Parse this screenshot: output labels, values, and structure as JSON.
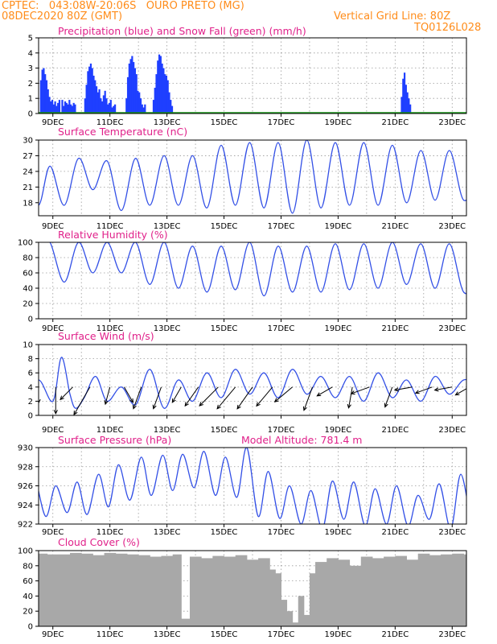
{
  "header": {
    "line1": "CPTEC:   043:08W-20:06S   OURO PRETO (MG)",
    "line2_left": "08DEC2020 80Z (GMT)",
    "line2_right": "Vertical Grid Line: 80Z",
    "line3_right": "TQ0126L028"
  },
  "colors": {
    "header": "#ff8c1a",
    "titles": "#e0218a",
    "precip": "#1f3fff",
    "snow": "#1a9a1a",
    "lines": "#3350e6",
    "cloud": "#a8a8a8",
    "wind_arrows": "#000000"
  },
  "x_tick_labels": [
    "9DEC",
    "11DEC",
    "13DEC",
    "15DEC",
    "17DEC",
    "19DEC",
    "21DEC",
    "23DEC"
  ],
  "chart_data": [
    {
      "id": "precip",
      "type": "bar",
      "title": "Precipitation (blue) and Snow Fall (green) (mm/h)",
      "x_days": [
        0.05,
        0.1,
        0.15,
        0.2,
        0.25,
        0.3,
        0.35,
        0.55,
        0.6,
        0.65,
        0.7,
        0.75,
        0.8,
        0.85,
        0.9,
        0.95,
        1.0,
        1.05,
        1.1,
        1.15,
        1.2,
        1.3,
        1.35,
        1.4,
        1.45,
        1.5,
        1.55,
        1.6,
        1.65,
        1.7,
        1.75,
        2.1,
        2.15,
        2.2,
        2.25,
        2.3,
        2.35,
        2.4,
        2.45,
        2.5,
        2.55,
        2.6,
        2.65,
        2.7,
        2.75,
        2.8,
        2.85,
        2.9,
        2.95,
        3.0,
        3.05,
        3.1,
        3.15,
        3.55,
        3.6,
        3.65,
        3.7,
        3.75,
        3.8,
        3.85,
        3.9,
        3.95,
        4.0,
        4.05,
        4.1,
        4.15,
        4.2,
        4.5,
        4.55,
        4.6,
        4.65,
        4.7,
        4.75,
        4.8,
        4.85,
        4.9,
        4.95,
        5.0,
        5.05,
        5.1,
        5.15,
        13.2,
        13.25,
        13.3,
        13.35,
        13.4,
        13.45,
        13.5
      ],
      "values": [
        1.0,
        0.4,
        1.2,
        0.8,
        0.5,
        1.1,
        0.6,
        2.2,
        2.9,
        3.0,
        2.6,
        2.2,
        1.6,
        1.1,
        0.8,
        0.9,
        0.6,
        0.8,
        0.5,
        0.7,
        0.9,
        0.9,
        0.5,
        0.8,
        0.7,
        0.6,
        0.9,
        0.6,
        0.5,
        0.7,
        0.6,
        1.0,
        1.9,
        2.8,
        3.1,
        3.3,
        3.0,
        2.5,
        2.2,
        1.8,
        1.4,
        1.6,
        1.0,
        0.8,
        1.2,
        1.5,
        1.0,
        0.6,
        0.7,
        0.9,
        0.4,
        0.5,
        0.6,
        1.0,
        2.4,
        3.3,
        3.6,
        3.8,
        3.4,
        3.0,
        2.6,
        1.5,
        1.4,
        1.0,
        0.6,
        0.4,
        0.6,
        0.9,
        1.7,
        2.6,
        3.5,
        3.9,
        3.8,
        3.3,
        3.0,
        2.6,
        2.5,
        2.2,
        1.4,
        0.9,
        0.5,
        1.1,
        2.3,
        2.7,
        1.9,
        1.4,
        1.0,
        0.6
      ],
      "snow": "0 throughout",
      "ylim": [
        0,
        5
      ],
      "yticks": [
        0,
        1,
        2,
        3,
        4,
        5
      ]
    },
    {
      "id": "temperature",
      "type": "line",
      "title": "Surface Temperature (nC)",
      "x_days": [
        0,
        0.5,
        0.9,
        1.4,
        1.9,
        2.4,
        2.9,
        3.4,
        3.9,
        4.4,
        4.9,
        5.4,
        5.9,
        6.4,
        6.9,
        7.4,
        7.9,
        8.4,
        8.9,
        9.4,
        9.9,
        10.4,
        10.9,
        11.4,
        11.9,
        12.4,
        12.9,
        13.4,
        13.9,
        14.4,
        14.9,
        15.4,
        15.9
      ],
      "values": [
        22,
        17.5,
        25,
        17.5,
        26.5,
        20.5,
        26,
        16.5,
        26.5,
        17.5,
        27,
        17.5,
        27,
        17,
        29,
        17.5,
        29.5,
        17,
        29.5,
        16,
        30,
        17,
        29.5,
        17.5,
        29.5,
        17.5,
        29,
        18,
        28,
        18.5,
        28,
        18.5,
        23
      ],
      "ylim": [
        15.5,
        30
      ],
      "yticks": [
        18,
        21,
        24,
        27,
        30
      ]
    },
    {
      "id": "humidity",
      "type": "line",
      "title": "Relative Humidity (%)",
      "x_days": [
        0,
        0.5,
        0.9,
        1.4,
        1.9,
        2.4,
        2.9,
        3.4,
        3.9,
        4.4,
        4.9,
        5.4,
        5.9,
        6.4,
        6.9,
        7.4,
        7.9,
        8.4,
        8.9,
        9.4,
        9.9,
        10.4,
        10.9,
        11.4,
        11.9,
        12.4,
        12.9,
        13.4,
        13.9,
        14.4,
        14.9,
        15.4,
        15.9
      ],
      "values": [
        80,
        100,
        100,
        48,
        100,
        60,
        100,
        60,
        100,
        45,
        100,
        40,
        95,
        35,
        95,
        38,
        100,
        30,
        95,
        35,
        95,
        35,
        98,
        38,
        98,
        40,
        100,
        45,
        98,
        40,
        98,
        35,
        48
      ],
      "ylim": [
        0,
        100
      ],
      "yticks": [
        0,
        20,
        40,
        60,
        80,
        100
      ]
    },
    {
      "id": "wind",
      "type": "line",
      "title": "Surface Wind (m/s)",
      "x_days": [
        0,
        0.5,
        1.0,
        1.3,
        1.6,
        1.8,
        2.1,
        2.5,
        2.9,
        3.4,
        3.9,
        4.4,
        4.9,
        5.4,
        5.9,
        6.4,
        6.9,
        7.4,
        7.9,
        8.4,
        8.9,
        9.4,
        9.9,
        10.4,
        10.9,
        11.4,
        11.9,
        12.4,
        12.9,
        13.4,
        13.9,
        14.4,
        14.9,
        15.4,
        15.9
      ],
      "values": [
        2,
        5,
        2,
        8.2,
        3,
        1,
        2.5,
        5.5,
        2,
        4,
        1.5,
        6.5,
        1,
        5,
        2,
        6,
        2.5,
        6.5,
        3,
        6,
        2.5,
        6.5,
        3,
        5.5,
        2.5,
        5.5,
        2,
        6,
        2.5,
        5,
        2,
        5.5,
        3,
        5,
        4.5
      ],
      "ylim": [
        0,
        10
      ],
      "yticks": [
        0,
        2,
        4,
        6,
        8,
        10
      ],
      "wind_arrows": [
        {
          "x": 0.5,
          "dir_deg": 0,
          "len": 0.9
        },
        {
          "x": 1.1,
          "dir_deg": 0,
          "len": 1.5
        },
        {
          "x": 1.7,
          "dir_deg": 45,
          "len": 1.0
        },
        {
          "x": 2.3,
          "dir_deg": 30,
          "len": 1.8
        },
        {
          "x": 3.0,
          "dir_deg": 15,
          "len": 1.0
        },
        {
          "x": 3.5,
          "dir_deg": 330,
          "len": 1.0
        },
        {
          "x": 4.1,
          "dir_deg": 20,
          "len": 1.3
        },
        {
          "x": 4.8,
          "dir_deg": 20,
          "len": 1.3
        },
        {
          "x": 5.5,
          "dir_deg": 30,
          "len": 1.0
        },
        {
          "x": 6.1,
          "dir_deg": 35,
          "len": 1.3
        },
        {
          "x": 6.8,
          "dir_deg": 45,
          "len": 1.5
        },
        {
          "x": 7.4,
          "dir_deg": 40,
          "len": 1.6
        },
        {
          "x": 8.0,
          "dir_deg": 35,
          "len": 1.5
        },
        {
          "x": 8.7,
          "dir_deg": 40,
          "len": 1.4
        },
        {
          "x": 9.4,
          "dir_deg": 50,
          "len": 1.3
        },
        {
          "x": 10.1,
          "dir_deg": 20,
          "len": 1.4
        },
        {
          "x": 10.8,
          "dir_deg": 60,
          "len": 1.0
        },
        {
          "x": 11.5,
          "dir_deg": 10,
          "len": 1.2
        },
        {
          "x": 12.1,
          "dir_deg": 70,
          "len": 1.1
        },
        {
          "x": 12.9,
          "dir_deg": 20,
          "len": 1.2
        },
        {
          "x": 13.6,
          "dir_deg": 80,
          "len": 1.0
        },
        {
          "x": 14.3,
          "dir_deg": 70,
          "len": 1.0
        },
        {
          "x": 15.0,
          "dir_deg": 80,
          "len": 1.0
        },
        {
          "x": 15.6,
          "dir_deg": 60,
          "len": 0.9
        }
      ]
    },
    {
      "id": "pressure",
      "type": "line",
      "title": "Surface Pressure (hPa)",
      "subtitle": "Model Altitude: 781.4 m",
      "x_days": [
        0,
        0.35,
        0.75,
        1.1,
        1.5,
        1.85,
        2.2,
        2.6,
        2.95,
        3.3,
        3.7,
        4.1,
        4.45,
        4.85,
        5.2,
        5.55,
        5.95,
        6.3,
        6.7,
        7.05,
        7.45,
        7.8,
        8.2,
        8.55,
        8.95,
        9.3,
        9.7,
        10.05,
        10.45,
        10.8,
        11.2,
        11.55,
        11.95,
        12.3,
        12.7,
        13.05,
        13.45,
        13.8,
        14.2,
        14.55,
        14.95,
        15.3,
        15.7,
        15.9
      ],
      "values": [
        926.2,
        927,
        922.8,
        926,
        923.2,
        926.4,
        923,
        927.2,
        923.8,
        928.2,
        924.5,
        929,
        925,
        929.2,
        925.5,
        929.3,
        925.8,
        929.6,
        925,
        929,
        924.8,
        930,
        922.8,
        927.5,
        922.6,
        926,
        922,
        925.5,
        921.5,
        926.5,
        922.5,
        926.4,
        921.8,
        925.7,
        922,
        926,
        921.8,
        925,
        922.5,
        926.2,
        921.5,
        927.2,
        922,
        924.5
      ],
      "ylim": [
        922,
        930
      ],
      "yticks": [
        922,
        924,
        926,
        928,
        930
      ]
    },
    {
      "id": "cloud",
      "type": "bar",
      "title": "Cloud Cover (%)",
      "x_days": [
        0,
        0.4,
        0.8,
        1.2,
        1.6,
        2.0,
        2.4,
        2.8,
        3.2,
        3.6,
        4.0,
        4.4,
        4.8,
        5.2,
        5.5,
        5.8,
        6.2,
        6.6,
        7.0,
        7.4,
        7.8,
        8.2,
        8.6,
        8.8,
        9.0,
        9.2,
        9.4,
        9.6,
        9.8,
        10.0,
        10.2,
        10.6,
        11.0,
        11.4,
        11.8,
        12.2,
        12.6,
        13.0,
        13.4,
        13.8,
        14.2,
        14.6,
        15.0,
        15.4,
        15.8
      ],
      "values": [
        97,
        96,
        95,
        95,
        97,
        96,
        94,
        97,
        96,
        95,
        94,
        92,
        93,
        95,
        10,
        92,
        90,
        93,
        92,
        94,
        88,
        90,
        75,
        70,
        35,
        20,
        5,
        40,
        15,
        70,
        85,
        90,
        88,
        80,
        92,
        90,
        92,
        93,
        88,
        96,
        94,
        95,
        96,
        95,
        94
      ],
      "ylim": [
        0,
        100
      ],
      "yticks": [
        0,
        20,
        40,
        60,
        80,
        100
      ]
    }
  ]
}
